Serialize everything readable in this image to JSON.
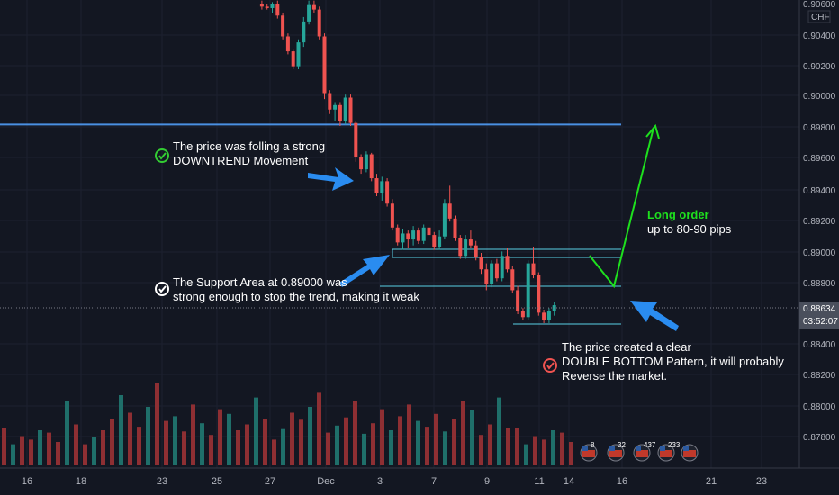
{
  "colors": {
    "background": "#131722",
    "bull": "#26a69a",
    "bear": "#ef5350",
    "vol_bull": "#1f6f6a",
    "vol_bear": "#8e2f33",
    "resistance": "#4a90e2",
    "zone": "#5ad1e6",
    "arrow": "#2a8cf0",
    "projection": "#1ee01e",
    "axis_text": "#b2b5be",
    "price_tag": "#4a4f5c"
  },
  "price_axis": {
    "currency": "CHF",
    "top_label": "0.90600",
    "labels": [
      "0.90400",
      "0.90200",
      "0.90000",
      "0.89800",
      "0.89600",
      "0.89400",
      "0.89200",
      "0.89000",
      "0.88800",
      "0.88400",
      "0.88200",
      "0.88000",
      "0.87800"
    ],
    "current_price": "0.88634",
    "countdown": "03:52:07"
  },
  "time_axis": {
    "labels": [
      "16",
      "18",
      "23",
      "25",
      "27",
      "Dec",
      "3",
      "7",
      "9",
      "11",
      "14",
      "16",
      "21",
      "23"
    ]
  },
  "annotations": {
    "downtrend": [
      "The price was folling a strong",
      "DOWNTREND Movement"
    ],
    "support": [
      "The Support Area at 0.89000 was",
      "strong enough to stop the trend, making it weak"
    ],
    "double_bottom": [
      "The price created a clear",
      "DOUBLE BOTTOM Pattern, it will probably",
      "Reverse the market."
    ],
    "long_title": "Long order",
    "long_sub": "up to 80-90 pips"
  },
  "event_markers": [
    "8",
    "32",
    "437",
    "233",
    ""
  ],
  "chart_data": {
    "type": "candlestick",
    "symbol_quote": "CHF",
    "resistance_level": 0.8983,
    "support_zone": [
      0.8896,
      0.8901
    ],
    "neckline": 0.8878,
    "bottom_line": 0.8852,
    "price_range": [
      0.8765,
      0.9064
    ],
    "candles": [
      [
        0.9064,
        0.9066,
        0.906,
        0.9062
      ],
      [
        0.9062,
        0.9064,
        0.906,
        0.9061
      ],
      [
        0.9061,
        0.9065,
        0.9058,
        0.9064
      ],
      [
        0.9064,
        0.9066,
        0.9054,
        0.9056
      ],
      [
        0.9056,
        0.9058,
        0.904,
        0.9042
      ],
      [
        0.9042,
        0.9044,
        0.903,
        0.9032
      ],
      [
        0.9032,
        0.9033,
        0.902,
        0.9022
      ],
      [
        0.9022,
        0.904,
        0.902,
        0.9038
      ],
      [
        0.9038,
        0.9055,
        0.9035,
        0.9052
      ],
      [
        0.9052,
        0.9066,
        0.905,
        0.9063
      ],
      [
        0.9063,
        0.9066,
        0.9058,
        0.906
      ],
      [
        0.906,
        0.9062,
        0.904,
        0.9042
      ],
      [
        0.9042,
        0.9044,
        0.9,
        0.9004
      ],
      [
        0.9004,
        0.9006,
        0.899,
        0.8993
      ],
      [
        0.8993,
        0.8998,
        0.8985,
        0.8996
      ],
      [
        0.8996,
        0.8998,
        0.8982,
        0.8985
      ],
      [
        0.8985,
        0.9003,
        0.8983,
        0.9001
      ],
      [
        0.9001,
        0.9003,
        0.8982,
        0.8984
      ],
      [
        0.8984,
        0.8985,
        0.8958,
        0.8961
      ],
      [
        0.8961,
        0.8963,
        0.895,
        0.8953
      ],
      [
        0.8953,
        0.8965,
        0.8951,
        0.8963
      ],
      [
        0.8963,
        0.8964,
        0.8945,
        0.8947
      ],
      [
        0.8947,
        0.895,
        0.8935,
        0.8937
      ],
      [
        0.8937,
        0.8948,
        0.8932,
        0.8945
      ],
      [
        0.8945,
        0.8947,
        0.8928,
        0.893
      ],
      [
        0.893,
        0.8933,
        0.8912,
        0.8914
      ],
      [
        0.8914,
        0.8916,
        0.8902,
        0.8904
      ],
      [
        0.8904,
        0.8913,
        0.8899,
        0.891
      ],
      [
        0.891,
        0.8912,
        0.89,
        0.8906
      ],
      [
        0.8906,
        0.8915,
        0.8902,
        0.8912
      ],
      [
        0.8912,
        0.8914,
        0.8903,
        0.8905
      ],
      [
        0.8905,
        0.8916,
        0.8903,
        0.8914
      ],
      [
        0.8914,
        0.892,
        0.8908,
        0.8909
      ],
      [
        0.8909,
        0.8911,
        0.8899,
        0.8901
      ],
      [
        0.8901,
        0.8912,
        0.8899,
        0.8908
      ],
      [
        0.8908,
        0.8933,
        0.8906,
        0.893
      ],
      [
        0.893,
        0.8942,
        0.8918,
        0.892
      ],
      [
        0.892,
        0.8922,
        0.8905,
        0.8907
      ],
      [
        0.8907,
        0.8909,
        0.8893,
        0.8895
      ],
      [
        0.8895,
        0.8909,
        0.8893,
        0.8906
      ],
      [
        0.8906,
        0.8912,
        0.89,
        0.8902
      ],
      [
        0.8902,
        0.8905,
        0.8892,
        0.8894
      ],
      [
        0.8894,
        0.8897,
        0.8883,
        0.8886
      ],
      [
        0.8886,
        0.889,
        0.8872,
        0.8876
      ],
      [
        0.8876,
        0.8892,
        0.8874,
        0.889
      ],
      [
        0.889,
        0.8893,
        0.8878,
        0.888
      ],
      [
        0.888,
        0.8898,
        0.8878,
        0.8895
      ],
      [
        0.8895,
        0.89,
        0.8884,
        0.8886
      ],
      [
        0.8886,
        0.8888,
        0.887,
        0.8872
      ],
      [
        0.8872,
        0.8875,
        0.8856,
        0.8858
      ],
      [
        0.8858,
        0.886,
        0.8852,
        0.8854
      ],
      [
        0.8854,
        0.8892,
        0.8852,
        0.889
      ],
      [
        0.889,
        0.8901,
        0.888,
        0.8882
      ],
      [
        0.8882,
        0.8884,
        0.8855,
        0.8857
      ],
      [
        0.8857,
        0.8859,
        0.885,
        0.8852
      ],
      [
        0.8852,
        0.886,
        0.885,
        0.8858
      ],
      [
        0.8858,
        0.8864,
        0.8855,
        0.8862
      ]
    ],
    "volume": [
      0.32,
      0.18,
      0.25,
      0.22,
      0.3,
      0.28,
      0.2,
      0.55,
      0.35,
      0.18,
      0.24,
      0.3,
      0.4,
      0.6,
      0.45,
      0.33,
      0.5,
      0.7,
      0.38,
      0.42,
      0.29,
      0.52,
      0.36,
      0.26,
      0.48,
      0.44,
      0.3,
      0.35,
      0.58,
      0.4,
      0.22,
      0.31,
      0.45,
      0.39,
      0.5,
      0.62,
      0.28,
      0.34,
      0.41,
      0.55,
      0.27,
      0.36,
      0.48,
      0.3,
      0.42,
      0.52,
      0.38,
      0.33,
      0.44,
      0.29,
      0.4,
      0.55,
      0.47,
      0.26,
      0.35,
      0.58,
      0.32
    ]
  }
}
